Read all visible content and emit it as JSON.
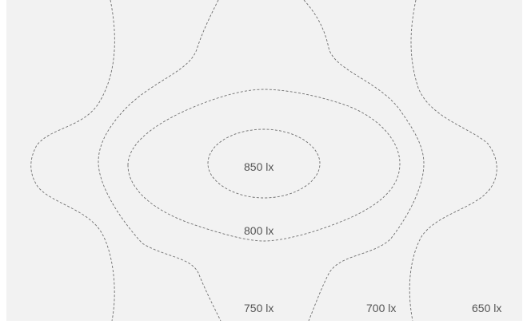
{
  "isoline_labels": {
    "l850": "850 lx",
    "l800": "800 lx",
    "l750": "750 lx",
    "l700": "700 lx",
    "l650": "650 lx"
  },
  "colors": {
    "background": "#f2f2f2",
    "line": "#6e6e6e",
    "text": "#555555"
  }
}
